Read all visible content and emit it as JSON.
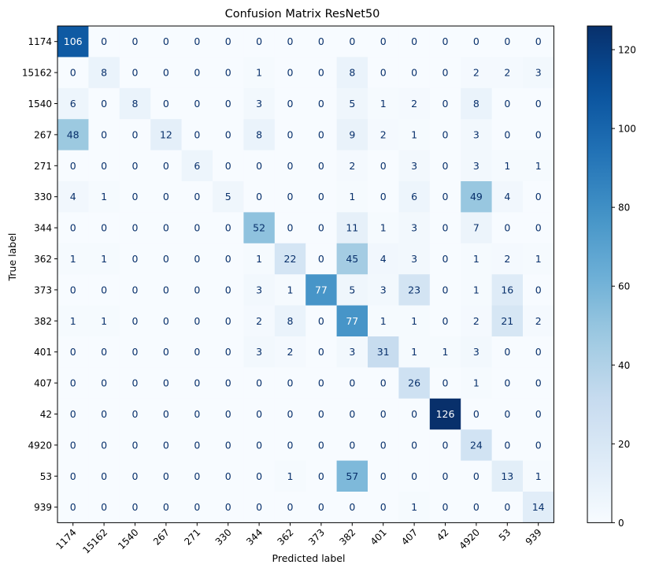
{
  "chart_data": {
    "type": "heatmap",
    "title": "Confusion Matrix ResNet50",
    "xlabel": "Predicted label",
    "ylabel": "True label",
    "labels": [
      "1174",
      "15162",
      "1540",
      "267",
      "271",
      "330",
      "344",
      "362",
      "373",
      "382",
      "401",
      "407",
      "42",
      "4920",
      "53",
      "939"
    ],
    "matrix": [
      [
        106,
        0,
        0,
        0,
        0,
        0,
        0,
        0,
        0,
        0,
        0,
        0,
        0,
        0,
        0,
        0
      ],
      [
        0,
        8,
        0,
        0,
        0,
        0,
        1,
        0,
        0,
        8,
        0,
        0,
        0,
        2,
        2,
        3
      ],
      [
        6,
        0,
        8,
        0,
        0,
        0,
        3,
        0,
        0,
        5,
        1,
        2,
        0,
        8,
        0,
        0
      ],
      [
        48,
        0,
        0,
        12,
        0,
        0,
        8,
        0,
        0,
        9,
        2,
        1,
        0,
        3,
        0,
        0
      ],
      [
        0,
        0,
        0,
        0,
        6,
        0,
        0,
        0,
        0,
        2,
        0,
        3,
        0,
        3,
        1,
        1
      ],
      [
        4,
        1,
        0,
        0,
        0,
        5,
        0,
        0,
        0,
        1,
        0,
        6,
        0,
        49,
        4,
        0
      ],
      [
        0,
        0,
        0,
        0,
        0,
        0,
        52,
        0,
        0,
        11,
        1,
        3,
        0,
        7,
        0,
        0
      ],
      [
        1,
        1,
        0,
        0,
        0,
        0,
        1,
        22,
        0,
        45,
        4,
        3,
        0,
        1,
        2,
        1
      ],
      [
        0,
        0,
        0,
        0,
        0,
        0,
        3,
        1,
        77,
        5,
        3,
        23,
        0,
        1,
        16,
        0
      ],
      [
        1,
        1,
        0,
        0,
        0,
        0,
        2,
        8,
        0,
        77,
        1,
        1,
        0,
        2,
        21,
        2
      ],
      [
        0,
        0,
        0,
        0,
        0,
        0,
        3,
        2,
        0,
        3,
        31,
        1,
        1,
        3,
        0,
        0
      ],
      [
        0,
        0,
        0,
        0,
        0,
        0,
        0,
        0,
        0,
        0,
        0,
        26,
        0,
        1,
        0,
        0
      ],
      [
        0,
        0,
        0,
        0,
        0,
        0,
        0,
        0,
        0,
        0,
        0,
        0,
        126,
        0,
        0,
        0
      ],
      [
        0,
        0,
        0,
        0,
        0,
        0,
        0,
        0,
        0,
        0,
        0,
        0,
        0,
        24,
        0,
        0
      ],
      [
        0,
        0,
        0,
        0,
        0,
        0,
        0,
        1,
        0,
        57,
        0,
        0,
        0,
        0,
        13,
        1
      ],
      [
        0,
        0,
        0,
        0,
        0,
        0,
        0,
        0,
        0,
        0,
        0,
        1,
        0,
        0,
        0,
        14
      ]
    ],
    "colormap": "Blues",
    "vmin": 0,
    "vmax": 126,
    "colorbar_ticks": [
      0,
      20,
      40,
      60,
      80,
      100,
      120
    ]
  }
}
